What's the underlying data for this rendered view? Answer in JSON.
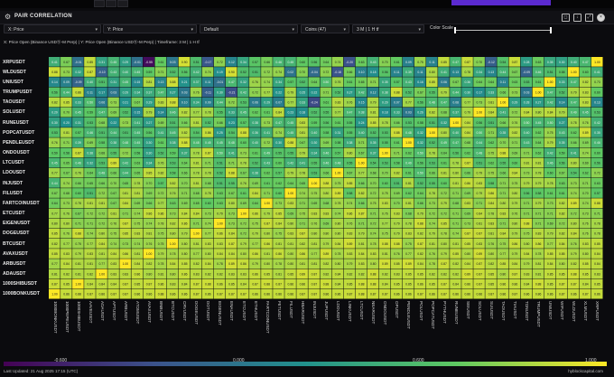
{
  "window": {
    "title": "PAIR CORRELATION"
  },
  "controls": {
    "x_select": "X: Price",
    "y_select": "Y: Price",
    "preset_select": "Default",
    "coins_select": "Coins (47)",
    "timeframe_select": "3 M | 1 H tf",
    "color_scale_label": "Color Scale"
  },
  "subtitle": "X: Price Open (Binance USDⓈ-M Perp) | Y: Price Open (Binance USDⓈ-M Perp) | Timeframe: 3 M | 1 H tf",
  "colorbar": {
    "ticks": [
      "-0.600",
      "0.000",
      "0.600",
      "1.000"
    ]
  },
  "footer": {
    "updated": "Last Updated: 21 Aug 2025 17:15 (UTC)",
    "brand": "hyblockcapital.com"
  },
  "icons": [
    "gear-icon",
    "screenshot-icon",
    "download-icon",
    "expand-icon",
    "close-icon"
  ],
  "colors": {
    "accent": "#5b2ad0",
    "panel_bg": "#0b0b0e"
  },
  "chart_data": {
    "type": "heatmap",
    "colormap": "viridis",
    "range": [
      -0.6,
      1.0
    ],
    "y_categories": [
      "XRPUSDT",
      "WLDUSDT",
      "UNIUSDT",
      "TRUMPUSDT",
      "TAOUSDT",
      "SOLUSDT",
      "RUNEUSDT",
      "POPCATUSDT",
      "PENDLEUSDT",
      "ONDOUSDT",
      "LTCUSDT",
      "LDOUSDT",
      "INJUSDT",
      "FILUSDT",
      "FARTCOINUSDT",
      "ETCUSDT",
      "EIGENUSDT",
      "DOGEUSDT",
      "BTCUSDT",
      "AVAXUSDT",
      "ARBUSDT",
      "ADAUSDT",
      "1000SHIBUSDT",
      "1000BONKUSDT"
    ],
    "x_categories": [
      "1000BONKUSDT",
      "1000PEPEUSDT",
      "1000SHIBUSDT",
      "AAVEUSDT",
      "ADAUSDT",
      "APTUSDT",
      "ARBUSDT",
      "ATOMUSDT",
      "AVAXUSDT",
      "BNBUSDT",
      "BTCUSDT",
      "CRVUSDT",
      "DOGEUSDT",
      "DOTUSDT",
      "EIGENUSDT",
      "ENAUSDT",
      "ETCUSDT",
      "ETHUSDT",
      "FARTCOINUSDT",
      "FETUSDT",
      "FILUSDT",
      "HBARUSDT",
      "INJUSDT",
      "JUPUSDT",
      "LDOUSDT",
      "LINKUSDT",
      "LTCUSDT",
      "NEARUSDT",
      "ONDOUSDT",
      "OPUSDT",
      "PENDLEUSDT",
      "POLUSDT",
      "POPCATUSDT",
      "PYTHUSDT",
      "RUNEUSDT",
      "SEIUSDT",
      "SOLUSDT",
      "SUIUSDT",
      "TAOUSDT",
      "TIAUSDT",
      "TONUSDT",
      "TRUMPUSDT",
      "UNIUSDT",
      "WIFUSDT",
      "WLDUSDT",
      "XLMUSDT",
      "XRPUSDT"
    ],
    "values": [
      [
        0.41,
        0.67,
        -0.01,
        0.85,
        0.31,
        0.45,
        0.29,
        -0.01,
        -0.55,
        0.61,
        0.03,
        0.9,
        0.51,
        -0.17,
        0.72,
        0.12,
        0.34,
        0.57,
        0.66,
        0.46,
        0.45,
        0.6,
        0.56,
        0.64,
        0.74,
        -0.2,
        0.63,
        0.43,
        0.7,
        0.61,
        0.09,
        0.75,
        0.11,
        0.85,
        0.47,
        0.87,
        0.7,
        -0.12,
        0.54,
        0.87,
        0.28,
        0.63,
        0.35,
        0.3,
        0.4,
        0.47,
        1.0
      ],
      [
        0.88,
        0.73,
        0.32,
        0.87,
        -0.1,
        0.43,
        0.4,
        0.45,
        0.59,
        0.71,
        0.52,
        0.56,
        0.42,
        0.74,
        0.19,
        0.9,
        0.52,
        0.51,
        0.72,
        0.74,
        0.02,
        0.7,
        -0.04,
        0.72,
        -0.18,
        0.66,
        0.1,
        0.18,
        0.56,
        0.11,
        0.39,
        0.11,
        0.8,
        0.41,
        0.13,
        0.78,
        0.34,
        0.13,
        0.44,
        0.67,
        -0.09,
        0.46,
        0.51,
        0.58,
        1.0,
        0.6,
        0.41
      ],
      [
        0.14,
        0.09,
        -0.09,
        0.4,
        0.51,
        0.31,
        0.45,
        0.15,
        0.81,
        0.13,
        0.88,
        0.21,
        0.37,
        0.11,
        -0.01,
        0.47,
        0.32,
        0.76,
        0.74,
        0.34,
        0.57,
        0.52,
        0.64,
        0.5,
        0.76,
        0.61,
        0.65,
        0.71,
        0.35,
        0.57,
        0.43,
        0.16,
        0.85,
        0.06,
        0.67,
        0.36,
        0.64,
        0.64,
        0.11,
        0.63,
        0.53,
        0.61,
        1.0,
        0.33,
        0.47,
        0.82,
        0.73
      ],
      [
        0.56,
        0.44,
        0.86,
        0.11,
        0.17,
        0.03,
        0.29,
        0.34,
        0.37,
        0.47,
        0.27,
        0.03,
        0.76,
        -0.11,
        0.3,
        -0.21,
        0.42,
        0.72,
        0.77,
        0.22,
        0.79,
        0.25,
        0.22,
        0.71,
        0.52,
        0.27,
        0.42,
        0.12,
        0.38,
        0.88,
        0.52,
        0.67,
        0.55,
        0.79,
        0.44,
        0.3,
        0.17,
        0.33,
        0.66,
        0.73,
        0.03,
        1.0,
        0.47,
        0.52,
        0.79,
        0.83,
        0.6
      ],
      [
        0.82,
        0.85,
        0.33,
        0.5,
        0.06,
        0.73,
        0.21,
        0.67,
        0.29,
        0.83,
        0.88,
        0.1,
        0.34,
        0.09,
        0.44,
        0.72,
        0.53,
        0.06,
        0.29,
        0.07,
        0.77,
        0.33,
        -0.24,
        0.61,
        0.83,
        0.76,
        0.15,
        0.79,
        0.29,
        0.07,
        0.77,
        0.56,
        0.48,
        0.47,
        0.08,
        0.77,
        0.73,
        0.81,
        1.0,
        0.29,
        0.28,
        0.27,
        0.42,
        0.14,
        0.47,
        0.83,
        0.13
      ],
      [
        0.29,
        0.7,
        0.45,
        0.59,
        0.47,
        0.69,
        0.52,
        0.15,
        0.79,
        0.14,
        0.46,
        0.82,
        0.77,
        0.78,
        0.55,
        0.33,
        0.45,
        0.62,
        0.61,
        0.84,
        0.23,
        0.18,
        0.52,
        0.55,
        0.77,
        0.47,
        0.38,
        0.81,
        0.18,
        0.33,
        0.03,
        0.26,
        0.82,
        0.68,
        0.37,
        0.79,
        1.0,
        0.84,
        0.41,
        0.72,
        0.84,
        0.8,
        0.84,
        0.79,
        0.49,
        0.45,
        0.53
      ],
      [
        0.3,
        0.2,
        0.31,
        0.53,
        0.68,
        0.22,
        0.73,
        0.41,
        0.27,
        0.69,
        0.51,
        0.66,
        0.81,
        0.52,
        0.66,
        0.23,
        0.57,
        0.38,
        0.73,
        0.47,
        0.45,
        0.83,
        0.59,
        0.56,
        0.61,
        0.55,
        0.24,
        0.85,
        0.78,
        0.66,
        0.53,
        0.58,
        0.51,
        0.32,
        1.0,
        0.84,
        0.56,
        0.51,
        0.66,
        0.76,
        0.5,
        0.45,
        0.5,
        0.27,
        0.78,
        0.76,
        0.42
      ],
      [
        0.53,
        0.81,
        0.57,
        0.46,
        0.51,
        0.44,
        0.51,
        0.45,
        0.56,
        0.41,
        0.45,
        0.82,
        0.54,
        0.86,
        0.25,
        0.54,
        0.88,
        0.36,
        0.41,
        0.74,
        0.45,
        0.81,
        0.4,
        0.58,
        0.31,
        0.55,
        0.4,
        0.52,
        0.53,
        0.88,
        0.48,
        0.32,
        1.0,
        0.8,
        0.4,
        0.84,
        0.5,
        0.71,
        0.35,
        0.82,
        0.4,
        0.62,
        0.75,
        0.43,
        0.62,
        0.89,
        0.35
      ],
      [
        0.76,
        0.71,
        0.39,
        0.69,
        0.58,
        0.38,
        0.48,
        0.45,
        0.3,
        0.61,
        0.38,
        0.88,
        0.48,
        0.45,
        0.45,
        0.48,
        0.6,
        0.4,
        0.72,
        0.3,
        0.88,
        0.67,
        0.3,
        0.69,
        0.58,
        0.38,
        0.71,
        0.35,
        0.55,
        0.61,
        1.0,
        0.32,
        0.52,
        0.49,
        0.47,
        0.68,
        0.44,
        0.62,
        0.7,
        0.71,
        0.43,
        0.64,
        0.79,
        0.35,
        0.66,
        0.69,
        0.46
      ],
      [
        0.59,
        0.58,
        0.87,
        0.38,
        0.68,
        0.55,
        0.72,
        0.58,
        0.3,
        0.52,
        0.59,
        0.37,
        0.78,
        0.87,
        0.5,
        0.41,
        0.73,
        0.61,
        0.49,
        0.55,
        0.55,
        0.79,
        0.34,
        0.46,
        0.57,
        0.8,
        0.67,
        0.37,
        1.0,
        0.71,
        0.62,
        0.5,
        0.78,
        0.64,
        0.56,
        0.62,
        0.48,
        0.75,
        0.88,
        0.69,
        0.71,
        0.62,
        0.42,
        0.59,
        0.41,
        0.74,
        0.6
      ],
      [
        0.45,
        0.65,
        0.46,
        0.32,
        0.53,
        0.89,
        0.42,
        0.63,
        0.34,
        0.76,
        0.53,
        0.64,
        0.81,
        0.71,
        0.51,
        0.71,
        0.78,
        0.52,
        0.43,
        0.6,
        0.42,
        0.41,
        0.55,
        0.46,
        0.48,
        0.55,
        1.0,
        0.54,
        0.53,
        0.58,
        0.49,
        0.56,
        0.53,
        0.61,
        0.78,
        0.87,
        0.51,
        0.62,
        0.55,
        0.6,
        0.81,
        0.81,
        0.46,
        0.56,
        0.8,
        0.69,
        0.56
      ],
      [
        0.77,
        0.67,
        0.76,
        0.64,
        0.48,
        0.66,
        0.44,
        0.65,
        0.85,
        0.82,
        0.58,
        0.66,
        0.78,
        0.78,
        0.52,
        0.88,
        0.67,
        0.38,
        0.62,
        0.57,
        0.79,
        0.78,
        0.53,
        0.66,
        1.0,
        0.67,
        0.77,
        0.68,
        0.7,
        0.82,
        0.61,
        0.5,
        0.66,
        0.81,
        0.8,
        0.66,
        0.79,
        0.75,
        0.66,
        0.84,
        0.73,
        0.78,
        0.6,
        0.67,
        0.54,
        0.62,
        0.72
      ],
      [
        0.44,
        0.74,
        0.66,
        0.65,
        0.66,
        0.7,
        0.65,
        0.78,
        0.7,
        0.57,
        0.82,
        0.7,
        0.81,
        0.68,
        0.51,
        0.55,
        0.76,
        0.69,
        0.61,
        0.62,
        0.64,
        0.65,
        1.0,
        0.88,
        0.75,
        0.85,
        0.66,
        0.7,
        0.6,
        0.51,
        0.81,
        0.52,
        0.55,
        0.6,
        0.81,
        0.86,
        0.83,
        0.58,
        0.71,
        0.75,
        0.79,
        0.79,
        0.78,
        0.63,
        0.73,
        0.71,
        0.63
      ],
      [
        0.67,
        0.68,
        0.6,
        0.51,
        0.72,
        0.67,
        0.81,
        0.81,
        0.69,
        0.72,
        0.76,
        0.71,
        0.68,
        0.78,
        0.63,
        0.67,
        0.61,
        0.84,
        0.71,
        0.6,
        1.0,
        0.74,
        0.75,
        0.8,
        0.89,
        0.58,
        0.82,
        0.72,
        0.75,
        0.69,
        0.62,
        0.64,
        0.78,
        0.72,
        0.71,
        0.69,
        0.79,
        0.86,
        0.71,
        0.8,
        0.56,
        0.58,
        0.61,
        0.61,
        0.74,
        0.7,
        0.57
      ],
      [
        0.64,
        0.73,
        0.78,
        0.81,
        0.81,
        0.67,
        0.84,
        0.69,
        0.66,
        0.77,
        0.63,
        0.69,
        0.65,
        0.6,
        0.63,
        0.8,
        0.69,
        0.64,
        1.0,
        0.73,
        0.83,
        0.71,
        0.69,
        0.68,
        0.78,
        0.74,
        0.66,
        0.75,
        0.83,
        0.7,
        0.81,
        0.66,
        0.73,
        0.79,
        0.68,
        0.83,
        0.71,
        0.84,
        0.8,
        0.79,
        0.71,
        0.79,
        0.73,
        0.82,
        0.89,
        0.74,
        0.88
      ],
      [
        0.77,
        0.76,
        0.67,
        0.72,
        0.72,
        0.81,
        0.71,
        0.74,
        0.86,
        0.86,
        0.73,
        0.84,
        0.84,
        0.73,
        0.79,
        0.73,
        1.0,
        0.86,
        0.79,
        0.85,
        0.69,
        0.75,
        0.83,
        0.83,
        0.74,
        0.86,
        0.87,
        0.71,
        0.76,
        0.83,
        0.68,
        0.79,
        0.72,
        0.72,
        0.71,
        0.69,
        0.84,
        0.78,
        0.83,
        0.76,
        0.71,
        0.71,
        0.71,
        0.82,
        0.72,
        0.73,
        0.71
      ],
      [
        0.8,
        0.8,
        0.71,
        0.71,
        0.72,
        0.76,
        0.87,
        0.75,
        0.74,
        0.78,
        0.82,
        0.86,
        0.71,
        0.74,
        1.0,
        0.73,
        0.72,
        0.75,
        0.87,
        0.84,
        0.8,
        0.71,
        0.76,
        0.69,
        0.8,
        0.76,
        0.71,
        0.72,
        0.77,
        0.79,
        0.78,
        0.88,
        0.74,
        0.85,
        0.71,
        0.73,
        0.81,
        0.83,
        0.71,
        0.8,
        0.88,
        0.71,
        0.69,
        0.72,
        0.8,
        0.76,
        0.78
      ],
      [
        0.85,
        0.76,
        0.88,
        0.74,
        0.8,
        0.75,
        0.85,
        0.83,
        0.81,
        0.75,
        0.8,
        0.79,
        1.0,
        0.77,
        0.86,
        0.84,
        0.72,
        0.79,
        0.8,
        0.75,
        0.83,
        0.87,
        0.8,
        0.8,
        0.8,
        0.83,
        0.79,
        0.74,
        0.75,
        0.79,
        0.83,
        0.82,
        0.79,
        0.78,
        0.74,
        0.87,
        0.87,
        0.81,
        0.84,
        0.79,
        0.75,
        0.83,
        0.79,
        0.82,
        0.84,
        0.76,
        0.78
      ],
      [
        0.82,
        0.77,
        0.75,
        0.77,
        0.84,
        0.74,
        0.73,
        0.74,
        0.76,
        0.75,
        1.0,
        0.8,
        0.81,
        0.83,
        0.83,
        0.87,
        0.79,
        0.77,
        0.86,
        0.81,
        0.81,
        0.82,
        0.81,
        0.79,
        0.84,
        0.89,
        0.81,
        0.78,
        0.88,
        0.88,
        0.75,
        0.87,
        0.81,
        0.8,
        0.81,
        0.85,
        0.83,
        0.76,
        0.75,
        0.86,
        0.8,
        0.86,
        0.77,
        0.84,
        0.76,
        0.83,
        0.85
      ],
      [
        0.85,
        0.83,
        0.79,
        0.83,
        0.81,
        0.84,
        0.86,
        0.81,
        1.0,
        0.79,
        0.78,
        0.8,
        0.77,
        0.8,
        0.84,
        0.84,
        0.8,
        0.86,
        0.81,
        0.86,
        0.8,
        0.86,
        0.77,
        0.89,
        0.78,
        0.83,
        0.84,
        0.83,
        0.81,
        0.76,
        0.77,
        0.82,
        0.76,
        0.79,
        0.85,
        0.8,
        0.89,
        0.8,
        0.77,
        0.79,
        0.84,
        0.78,
        0.85,
        0.85,
        0.79,
        0.8,
        0.84
      ],
      [
        0.77,
        0.84,
        0.81,
        0.81,
        0.77,
        0.83,
        1.0,
        0.84,
        0.82,
        0.78,
        0.84,
        0.85,
        0.82,
        0.84,
        0.78,
        0.89,
        0.86,
        0.79,
        0.8,
        0.78,
        0.8,
        0.81,
        0.81,
        0.82,
        0.8,
        0.79,
        0.83,
        0.8,
        0.89,
        0.85,
        0.89,
        0.84,
        0.78,
        0.87,
        0.82,
        0.84,
        0.87,
        0.82,
        0.85,
        0.84,
        0.79,
        0.81,
        0.84,
        0.8,
        0.82,
        0.85,
        0.84
      ],
      [
        0.81,
        0.82,
        0.81,
        0.82,
        1.0,
        0.83,
        0.83,
        0.86,
        0.8,
        0.81,
        0.8,
        0.86,
        0.83,
        0.82,
        0.82,
        0.83,
        0.83,
        0.86,
        0.85,
        0.81,
        0.85,
        0.89,
        0.87,
        0.82,
        0.84,
        0.82,
        0.82,
        0.88,
        0.82,
        0.83,
        0.85,
        0.85,
        0.82,
        0.82,
        0.82,
        0.89,
        0.87,
        0.85,
        0.8,
        0.87,
        0.83,
        0.81,
        0.85,
        0.85,
        0.88,
        0.85,
        0.83
      ],
      [
        0.87,
        0.85,
        1.0,
        0.84,
        0.84,
        0.84,
        0.87,
        0.85,
        0.87,
        0.86,
        0.83,
        0.84,
        0.87,
        0.88,
        0.86,
        0.85,
        0.84,
        0.87,
        0.88,
        0.87,
        0.86,
        0.86,
        0.87,
        0.88,
        0.84,
        0.85,
        0.88,
        0.88,
        0.84,
        0.85,
        0.85,
        0.86,
        0.85,
        0.87,
        0.84,
        0.86,
        0.87,
        0.85,
        0.86,
        0.86,
        0.84,
        0.88,
        0.85,
        0.87,
        0.87,
        0.84,
        0.85
      ],
      [
        1.0,
        0.86,
        0.88,
        0.87,
        0.86,
        0.87,
        0.87,
        0.86,
        0.86,
        0.88,
        0.86,
        0.86,
        0.87,
        0.86,
        0.87,
        0.87,
        0.87,
        0.86,
        0.86,
        0.86,
        0.86,
        0.87,
        0.87,
        0.86,
        0.86,
        0.87,
        0.88,
        0.87,
        0.87,
        0.86,
        0.86,
        0.87,
        0.86,
        0.87,
        0.86,
        0.86,
        0.86,
        0.87,
        0.86,
        0.87,
        0.86,
        0.86,
        0.86,
        0.87,
        0.86,
        0.87,
        0.86
      ]
    ]
  }
}
